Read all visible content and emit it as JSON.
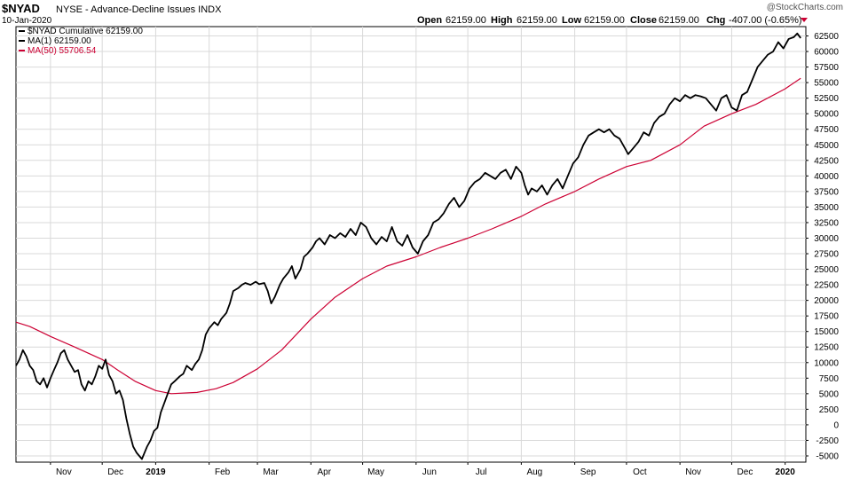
{
  "header": {
    "symbol": "$NYAD",
    "description": "NYSE - Advance-Decline Issues  INDX",
    "date": "10-Jan-2020",
    "watermark": "@StockCharts.com",
    "quote": {
      "open_label": "Open",
      "open": "62159.00",
      "high_label": "High",
      "high": "62159.00",
      "low_label": "Low",
      "low": "62159.00",
      "close_label": "Close",
      "close": "62159.00",
      "chg_label": "Chg",
      "chg": "-407.00 (-0.65%)"
    }
  },
  "legend": {
    "placement": "top-left",
    "items": [
      {
        "text": "$NYAD Cumulative 62159.00",
        "color": "#000000"
      },
      {
        "text": "MA(1) 62159.00",
        "color": "#000000"
      },
      {
        "text": "MA(50) 55706.54",
        "color": "#cc0033"
      }
    ]
  },
  "colors": {
    "price": "#000000",
    "ma50": "#cc0033",
    "grid": "#d9d9d9",
    "down": "#cc0033"
  },
  "chart_data": {
    "type": "line",
    "x_range": [
      "2018-10-12",
      "2020-01-13"
    ],
    "ylim": [
      -6000,
      64000
    ],
    "yticks": [
      -5000,
      -2500,
      0,
      2500,
      5000,
      7500,
      10000,
      12500,
      15000,
      17500,
      20000,
      22500,
      25000,
      27500,
      30000,
      32500,
      35000,
      37500,
      40000,
      42500,
      45000,
      47500,
      50000,
      52500,
      55000,
      57500,
      60000,
      62500
    ],
    "xticks": [
      {
        "label": "Nov",
        "date": "2018-11-01",
        "bold": false
      },
      {
        "label": "Dec",
        "date": "2018-12-01",
        "bold": false
      },
      {
        "label": "2019",
        "date": "2019-01-01",
        "bold": true
      },
      {
        "label": "Feb",
        "date": "2019-02-01",
        "bold": false
      },
      {
        "label": "Mar",
        "date": "2019-03-01",
        "bold": false
      },
      {
        "label": "Apr",
        "date": "2019-04-01",
        "bold": false
      },
      {
        "label": "May",
        "date": "2019-05-01",
        "bold": false
      },
      {
        "label": "Jun",
        "date": "2019-06-01",
        "bold": false
      },
      {
        "label": "Jul",
        "date": "2019-07-01",
        "bold": false
      },
      {
        "label": "Aug",
        "date": "2019-08-01",
        "bold": false
      },
      {
        "label": "Sep",
        "date": "2019-09-01",
        "bold": false
      },
      {
        "label": "Oct",
        "date": "2019-10-01",
        "bold": false
      },
      {
        "label": "Nov",
        "date": "2019-11-01",
        "bold": false
      },
      {
        "label": "Dec",
        "date": "2019-12-01",
        "bold": false
      },
      {
        "label": "2020",
        "date": "2020-01-01",
        "bold": true
      }
    ],
    "grid": true,
    "series": [
      {
        "name": "$NYAD Cumulative",
        "color": "#000000",
        "points": [
          [
            "2018-10-12",
            9500
          ],
          [
            "2018-10-14",
            10500
          ],
          [
            "2018-10-16",
            12000
          ],
          [
            "2018-10-18",
            11000
          ],
          [
            "2018-10-20",
            9500
          ],
          [
            "2018-10-22",
            8800
          ],
          [
            "2018-10-24",
            7000
          ],
          [
            "2018-10-26",
            6500
          ],
          [
            "2018-10-28",
            7500
          ],
          [
            "2018-10-30",
            6000
          ],
          [
            "2018-11-01",
            7500
          ],
          [
            "2018-11-03",
            8800
          ],
          [
            "2018-11-05",
            10000
          ],
          [
            "2018-11-07",
            11500
          ],
          [
            "2018-11-09",
            12000
          ],
          [
            "2018-11-11",
            10500
          ],
          [
            "2018-11-13",
            9500
          ],
          [
            "2018-11-15",
            8500
          ],
          [
            "2018-11-17",
            8800
          ],
          [
            "2018-11-19",
            6500
          ],
          [
            "2018-11-21",
            5500
          ],
          [
            "2018-11-23",
            7000
          ],
          [
            "2018-11-25",
            6500
          ],
          [
            "2018-11-27",
            7800
          ],
          [
            "2018-11-29",
            9500
          ],
          [
            "2018-12-01",
            9000
          ],
          [
            "2018-12-03",
            10500
          ],
          [
            "2018-12-05",
            8000
          ],
          [
            "2018-12-07",
            7000
          ],
          [
            "2018-12-09",
            5000
          ],
          [
            "2018-12-11",
            5500
          ],
          [
            "2018-12-13",
            4000
          ],
          [
            "2018-12-15",
            1000
          ],
          [
            "2018-12-17",
            -1500
          ],
          [
            "2018-12-19",
            -3500
          ],
          [
            "2018-12-21",
            -4500
          ],
          [
            "2018-12-24",
            -5500
          ],
          [
            "2018-12-27",
            -3500
          ],
          [
            "2018-12-29",
            -2500
          ],
          [
            "2018-12-31",
            -1000
          ],
          [
            "2019-01-02",
            -500
          ],
          [
            "2019-01-04",
            2000
          ],
          [
            "2019-01-06",
            3500
          ],
          [
            "2019-01-08",
            5000
          ],
          [
            "2019-01-10",
            6500
          ],
          [
            "2019-01-12",
            7000
          ],
          [
            "2019-01-15",
            7800
          ],
          [
            "2019-01-17",
            8200
          ],
          [
            "2019-01-19",
            9500
          ],
          [
            "2019-01-22",
            8800
          ],
          [
            "2019-01-24",
            9800
          ],
          [
            "2019-01-26",
            10500
          ],
          [
            "2019-01-28",
            12000
          ],
          [
            "2019-01-30",
            14500
          ],
          [
            "2019-02-01",
            15500
          ],
          [
            "2019-02-04",
            16500
          ],
          [
            "2019-02-06",
            16000
          ],
          [
            "2019-02-08",
            17000
          ],
          [
            "2019-02-11",
            18000
          ],
          [
            "2019-02-13",
            19500
          ],
          [
            "2019-02-15",
            21500
          ],
          [
            "2019-02-18",
            22000
          ],
          [
            "2019-02-20",
            22500
          ],
          [
            "2019-02-22",
            22800
          ],
          [
            "2019-02-25",
            22500
          ],
          [
            "2019-02-28",
            23000
          ],
          [
            "2019-03-02",
            22600
          ],
          [
            "2019-03-05",
            22800
          ],
          [
            "2019-03-07",
            21500
          ],
          [
            "2019-03-09",
            19500
          ],
          [
            "2019-03-11",
            20500
          ],
          [
            "2019-03-14",
            22500
          ],
          [
            "2019-03-16",
            23500
          ],
          [
            "2019-03-19",
            24500
          ],
          [
            "2019-03-21",
            25500
          ],
          [
            "2019-03-23",
            23500
          ],
          [
            "2019-03-26",
            25000
          ],
          [
            "2019-03-28",
            27000
          ],
          [
            "2019-03-30",
            27500
          ],
          [
            "2019-04-02",
            28500
          ],
          [
            "2019-04-04",
            29500
          ],
          [
            "2019-04-06",
            30000
          ],
          [
            "2019-04-09",
            29000
          ],
          [
            "2019-04-12",
            30500
          ],
          [
            "2019-04-15",
            30000
          ],
          [
            "2019-04-18",
            30800
          ],
          [
            "2019-04-21",
            30200
          ],
          [
            "2019-04-24",
            31500
          ],
          [
            "2019-04-27",
            30500
          ],
          [
            "2019-04-30",
            32500
          ],
          [
            "2019-05-03",
            31800
          ],
          [
            "2019-05-06",
            30000
          ],
          [
            "2019-05-09",
            29000
          ],
          [
            "2019-05-12",
            30200
          ],
          [
            "2019-05-15",
            29500
          ],
          [
            "2019-05-18",
            31800
          ],
          [
            "2019-05-21",
            29500
          ],
          [
            "2019-05-24",
            28800
          ],
          [
            "2019-05-27",
            30500
          ],
          [
            "2019-05-30",
            28500
          ],
          [
            "2019-06-02",
            27500
          ],
          [
            "2019-06-05",
            29500
          ],
          [
            "2019-06-08",
            30500
          ],
          [
            "2019-06-11",
            32500
          ],
          [
            "2019-06-14",
            33000
          ],
          [
            "2019-06-17",
            34000
          ],
          [
            "2019-06-20",
            35500
          ],
          [
            "2019-06-23",
            36500
          ],
          [
            "2019-06-26",
            35000
          ],
          [
            "2019-06-29",
            36000
          ],
          [
            "2019-07-02",
            38000
          ],
          [
            "2019-07-05",
            39000
          ],
          [
            "2019-07-08",
            39500
          ],
          [
            "2019-07-11",
            40500
          ],
          [
            "2019-07-14",
            40000
          ],
          [
            "2019-07-17",
            39500
          ],
          [
            "2019-07-20",
            40500
          ],
          [
            "2019-07-23",
            41000
          ],
          [
            "2019-07-26",
            39500
          ],
          [
            "2019-07-29",
            41500
          ],
          [
            "2019-08-01",
            40500
          ],
          [
            "2019-08-03",
            38500
          ],
          [
            "2019-08-05",
            37000
          ],
          [
            "2019-08-07",
            38000
          ],
          [
            "2019-08-10",
            37500
          ],
          [
            "2019-08-13",
            38500
          ],
          [
            "2019-08-16",
            37000
          ],
          [
            "2019-08-19",
            38500
          ],
          [
            "2019-08-22",
            39500
          ],
          [
            "2019-08-25",
            38000
          ],
          [
            "2019-08-28",
            40000
          ],
          [
            "2019-08-31",
            42000
          ],
          [
            "2019-09-03",
            43000
          ],
          [
            "2019-09-06",
            45000
          ],
          [
            "2019-09-09",
            46500
          ],
          [
            "2019-09-12",
            47000
          ],
          [
            "2019-09-15",
            47500
          ],
          [
            "2019-09-18",
            47000
          ],
          [
            "2019-09-21",
            47500
          ],
          [
            "2019-09-24",
            46500
          ],
          [
            "2019-09-27",
            46000
          ],
          [
            "2019-09-30",
            44500
          ],
          [
            "2019-10-02",
            43500
          ],
          [
            "2019-10-05",
            44500
          ],
          [
            "2019-10-08",
            45500
          ],
          [
            "2019-10-11",
            47000
          ],
          [
            "2019-10-14",
            46500
          ],
          [
            "2019-10-17",
            48500
          ],
          [
            "2019-10-20",
            49500
          ],
          [
            "2019-10-23",
            50000
          ],
          [
            "2019-10-26",
            51500
          ],
          [
            "2019-10-29",
            52500
          ],
          [
            "2019-11-01",
            52000
          ],
          [
            "2019-11-04",
            53000
          ],
          [
            "2019-11-07",
            52500
          ],
          [
            "2019-11-10",
            53000
          ],
          [
            "2019-11-13",
            52800
          ],
          [
            "2019-11-16",
            52500
          ],
          [
            "2019-11-19",
            51500
          ],
          [
            "2019-11-22",
            50500
          ],
          [
            "2019-11-25",
            52500
          ],
          [
            "2019-11-28",
            53000
          ],
          [
            "2019-12-01",
            51000
          ],
          [
            "2019-12-04",
            50500
          ],
          [
            "2019-12-07",
            53000
          ],
          [
            "2019-12-10",
            53500
          ],
          [
            "2019-12-13",
            55500
          ],
          [
            "2019-12-16",
            57500
          ],
          [
            "2019-12-19",
            58500
          ],
          [
            "2019-12-22",
            59500
          ],
          [
            "2019-12-25",
            60000
          ],
          [
            "2019-12-28",
            61500
          ],
          [
            "2019-12-31",
            60500
          ],
          [
            "2020-01-03",
            62000
          ],
          [
            "2020-01-06",
            62300
          ],
          [
            "2020-01-08",
            62900
          ],
          [
            "2020-01-10",
            62159
          ]
        ]
      },
      {
        "name": "MA(50)",
        "color": "#cc0033",
        "points": [
          [
            "2018-10-12",
            16500
          ],
          [
            "2018-10-20",
            15800
          ],
          [
            "2018-11-01",
            14200
          ],
          [
            "2018-11-15",
            12500
          ],
          [
            "2018-12-01",
            10500
          ],
          [
            "2018-12-10",
            8800
          ],
          [
            "2018-12-20",
            7000
          ],
          [
            "2019-01-01",
            5500
          ],
          [
            "2019-01-10",
            5000
          ],
          [
            "2019-01-25",
            5200
          ],
          [
            "2019-02-05",
            5800
          ],
          [
            "2019-02-15",
            6800
          ],
          [
            "2019-03-01",
            9000
          ],
          [
            "2019-03-15",
            12000
          ],
          [
            "2019-04-01",
            17000
          ],
          [
            "2019-04-15",
            20500
          ],
          [
            "2019-05-01",
            23500
          ],
          [
            "2019-05-15",
            25500
          ],
          [
            "2019-06-01",
            27000
          ],
          [
            "2019-06-15",
            28500
          ],
          [
            "2019-07-01",
            30000
          ],
          [
            "2019-07-15",
            31500
          ],
          [
            "2019-08-01",
            33500
          ],
          [
            "2019-08-15",
            35500
          ],
          [
            "2019-09-01",
            37500
          ],
          [
            "2019-09-15",
            39500
          ],
          [
            "2019-10-01",
            41500
          ],
          [
            "2019-10-15",
            42500
          ],
          [
            "2019-11-01",
            45000
          ],
          [
            "2019-11-15",
            48000
          ],
          [
            "2019-12-01",
            50000
          ],
          [
            "2019-12-15",
            51500
          ],
          [
            "2020-01-01",
            54000
          ],
          [
            "2020-01-10",
            55706.54
          ]
        ]
      }
    ]
  }
}
